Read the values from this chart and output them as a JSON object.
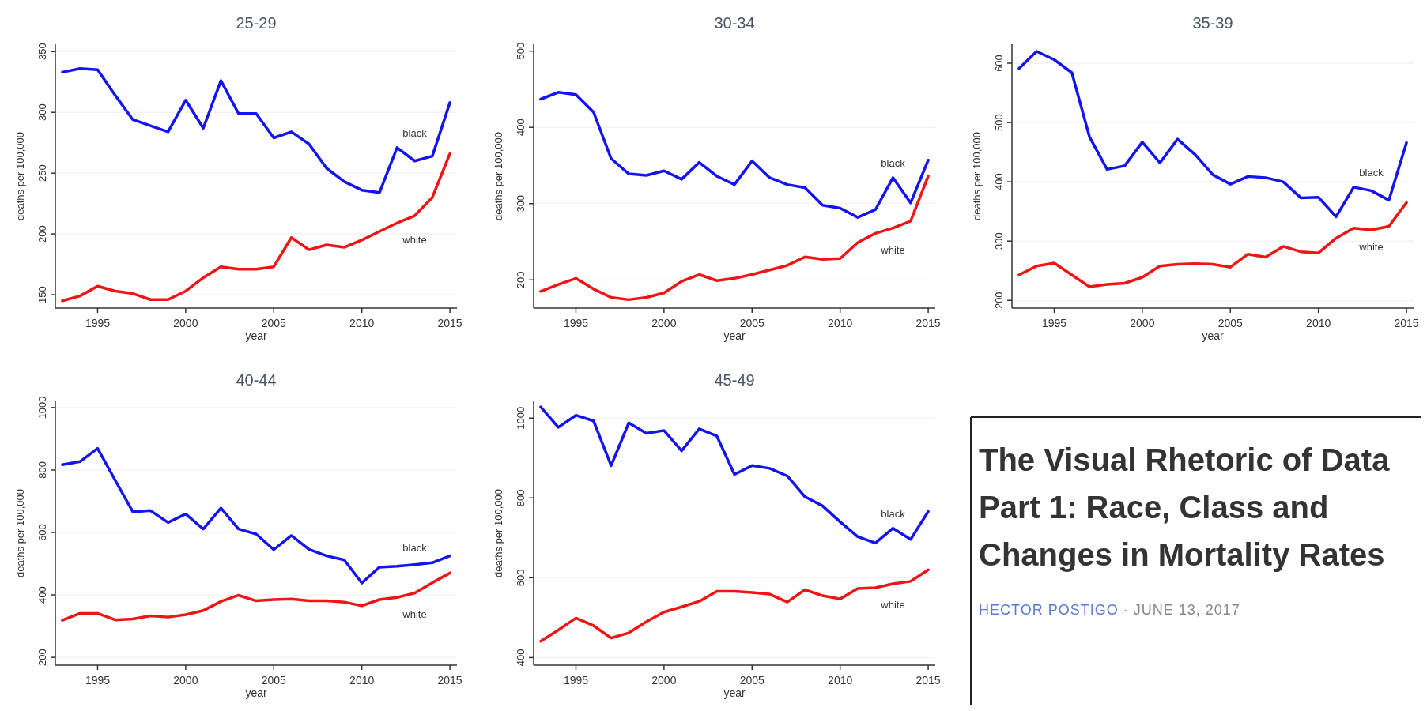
{
  "chart_data": [
    {
      "type": "line",
      "title": "25-29",
      "xlabel": "year",
      "ylabel": "deaths per 100,000",
      "x": [
        1993,
        1994,
        1995,
        1996,
        1997,
        1998,
        1999,
        2000,
        2001,
        2002,
        2003,
        2004,
        2005,
        2006,
        2007,
        2008,
        2009,
        2010,
        2011,
        2012,
        2013,
        2014,
        2015
      ],
      "xlim": [
        1992.6,
        2015.4
      ],
      "xticks": [
        1995,
        2000,
        2005,
        2010,
        2015
      ],
      "ylim": [
        139,
        356
      ],
      "yticks": [
        150,
        200,
        250,
        300,
        350
      ],
      "grid": "y",
      "series": [
        {
          "name": "black",
          "color": "#1414f0",
          "values": [
            333,
            336,
            335,
            314,
            294,
            289,
            284,
            310,
            287,
            326,
            299,
            299,
            279,
            284,
            274,
            254,
            243,
            236,
            234,
            271,
            260,
            264,
            308
          ]
        },
        {
          "name": "white",
          "color": "#f01414",
          "values": [
            145,
            149,
            157,
            153,
            151,
            146,
            146,
            153,
            164,
            173,
            171,
            171,
            173,
            197,
            187,
            191,
            189,
            195,
            202,
            209,
            215,
            230,
            266
          ]
        }
      ]
    },
    {
      "type": "line",
      "title": "30-34",
      "xlabel": "year",
      "ylabel": "deaths per 100,000",
      "x": [
        1993,
        1994,
        1995,
        1996,
        1997,
        1998,
        1999,
        2000,
        2001,
        2002,
        2003,
        2004,
        2005,
        2006,
        2007,
        2008,
        2009,
        2010,
        2011,
        2012,
        2013,
        2014,
        2015
      ],
      "xlim": [
        1992.6,
        2015.4
      ],
      "xticks": [
        1995,
        2000,
        2005,
        2010,
        2015
      ],
      "ylim": [
        163,
        509
      ],
      "yticks": [
        200,
        300,
        400,
        500
      ],
      "grid": "y",
      "series": [
        {
          "name": "black",
          "color": "#1414f0",
          "values": [
            437,
            446,
            443,
            420,
            359,
            339,
            337,
            343,
            332,
            354,
            336,
            325,
            356,
            334,
            325,
            321,
            298,
            294,
            282,
            292,
            334,
            301,
            357
          ]
        },
        {
          "name": "white",
          "color": "#f01414",
          "values": [
            185,
            194,
            202,
            188,
            177,
            174,
            177,
            183,
            198,
            207,
            199,
            202,
            207,
            213,
            219,
            230,
            227,
            228,
            249,
            261,
            268,
            277,
            336
          ]
        }
      ]
    },
    {
      "type": "line",
      "title": "35-39",
      "xlabel": "year",
      "ylabel": "deaths per 100,000",
      "x": [
        1993,
        1994,
        1995,
        1996,
        1997,
        1998,
        1999,
        2000,
        2001,
        2002,
        2003,
        2004,
        2005,
        2006,
        2007,
        2008,
        2009,
        2010,
        2011,
        2012,
        2013,
        2014,
        2015
      ],
      "xlim": [
        1992.6,
        2015.4
      ],
      "xticks": [
        1995,
        2000,
        2005,
        2010,
        2015
      ],
      "ylim": [
        187,
        632
      ],
      "yticks": [
        200,
        300,
        400,
        500,
        600
      ],
      "grid": "y",
      "series": [
        {
          "name": "black",
          "color": "#1414f0",
          "values": [
            591,
            620,
            606,
            584,
            476,
            421,
            427,
            467,
            432,
            472,
            446,
            412,
            396,
            409,
            407,
            400,
            373,
            374,
            341,
            391,
            385,
            369,
            466
          ]
        },
        {
          "name": "white",
          "color": "#f01414",
          "values": [
            243,
            258,
            263,
            243,
            223,
            227,
            229,
            239,
            258,
            261,
            262,
            261,
            256,
            278,
            273,
            291,
            282,
            280,
            305,
            322,
            319,
            325,
            365
          ]
        }
      ]
    },
    {
      "type": "line",
      "title": "40-44",
      "xlabel": "year",
      "ylabel": "deaths per 100,000",
      "x": [
        1993,
        1994,
        1995,
        1996,
        1997,
        1998,
        1999,
        2000,
        2001,
        2002,
        2003,
        2004,
        2005,
        2006,
        2007,
        2008,
        2009,
        2010,
        2011,
        2012,
        2013,
        2014,
        2015
      ],
      "xlim": [
        1992.6,
        2015.4
      ],
      "xticks": [
        1995,
        2000,
        2005,
        2010,
        2015
      ],
      "ylim": [
        175,
        1020
      ],
      "yticks": [
        200,
        400,
        600,
        800,
        1000
      ],
      "grid": "y",
      "series": [
        {
          "name": "black",
          "color": "#1414f0",
          "values": [
            817,
            827,
            869,
            767,
            666,
            670,
            632,
            659,
            611,
            678,
            611,
            595,
            545,
            590,
            546,
            525,
            512,
            438,
            489,
            492,
            497,
            503,
            525
          ]
        },
        {
          "name": "white",
          "color": "#f01414",
          "values": [
            319,
            341,
            341,
            320,
            323,
            333,
            329,
            337,
            350,
            379,
            399,
            381,
            385,
            387,
            381,
            381,
            377,
            365,
            385,
            392,
            406,
            439,
            470
          ]
        }
      ]
    },
    {
      "type": "line",
      "title": "45-49",
      "xlabel": "year",
      "ylabel": "deaths per 100,000",
      "x": [
        1993,
        1994,
        1995,
        1996,
        1997,
        1998,
        1999,
        2000,
        2001,
        2002,
        2003,
        2004,
        2005,
        2006,
        2007,
        2008,
        2009,
        2010,
        2011,
        2012,
        2013,
        2014,
        2015
      ],
      "xlim": [
        1992.6,
        2015.4
      ],
      "xticks": [
        1995,
        2000,
        2005,
        2010,
        2015
      ],
      "ylim": [
        381,
        1042
      ],
      "yticks": [
        400,
        600,
        800,
        1000
      ],
      "grid": "y",
      "series": [
        {
          "name": "black",
          "color": "#1414f0",
          "values": [
            1028,
            977,
            1007,
            993,
            881,
            988,
            962,
            969,
            918,
            973,
            955,
            859,
            881,
            874,
            855,
            803,
            780,
            740,
            703,
            687,
            724,
            696,
            766
          ]
        },
        {
          "name": "white",
          "color": "#f01414",
          "values": [
            441,
            469,
            499,
            480,
            449,
            462,
            490,
            514,
            527,
            541,
            566,
            566,
            563,
            559,
            539,
            570,
            555,
            547,
            573,
            575,
            585,
            591,
            620
          ]
        }
      ]
    },
    {
      "type": "other",
      "title": "The Visual Rhetoric of Data Part 1: Race, Class and Changes in Mortality Rates",
      "annotations": [
        "HECTOR POSTIGO",
        "· JUNE 13, 2017"
      ]
    }
  ]
}
